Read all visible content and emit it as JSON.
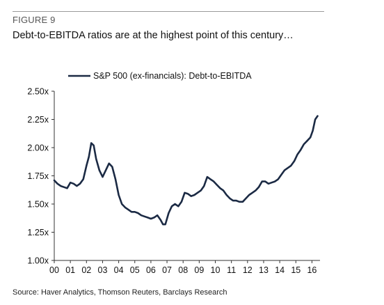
{
  "figure_label": "FIGURE 9",
  "headline": "Debt-to-EBITDA ratios are at the highest point of this century…",
  "source": "Source: Haver Analytics, Thomson Reuters, Barclays Research",
  "colors": {
    "series": "#1b2a44",
    "axis": "#333333",
    "rule": "#9a9a9a"
  },
  "chart_data": {
    "type": "line",
    "title": "",
    "xlabel": "",
    "ylabel": "",
    "legend_placement": "top",
    "grid": false,
    "xlim": [
      2000,
      2016.5
    ],
    "ylim": [
      1.0,
      2.5
    ],
    "x_ticks": [
      2000,
      2001,
      2002,
      2003,
      2004,
      2005,
      2006,
      2007,
      2008,
      2009,
      2010,
      2011,
      2012,
      2013,
      2014,
      2015,
      2016
    ],
    "x_tick_labels": [
      "00",
      "01",
      "02",
      "03",
      "04",
      "05",
      "06",
      "07",
      "08",
      "09",
      "10",
      "11",
      "12",
      "13",
      "14",
      "15",
      "16"
    ],
    "y_ticks": [
      1.0,
      1.25,
      1.5,
      1.75,
      2.0,
      2.25,
      2.5
    ],
    "y_tick_labels": [
      "1.00x",
      "1.25x",
      "1.50x",
      "1.75x",
      "2.00x",
      "2.25x",
      "2.50x"
    ],
    "series": [
      {
        "name": "S&P 500 (ex-financials): Debt-to-EBITDA",
        "x": [
          2000.0,
          2000.2,
          2000.4,
          2000.6,
          2000.8,
          2001.0,
          2001.2,
          2001.4,
          2001.6,
          2001.8,
          2002.0,
          2002.15,
          2002.3,
          2002.45,
          2002.6,
          2002.8,
          2003.0,
          2003.2,
          2003.4,
          2003.6,
          2003.8,
          2004.0,
          2004.2,
          2004.4,
          2004.6,
          2004.8,
          2005.0,
          2005.2,
          2005.4,
          2005.6,
          2005.8,
          2006.0,
          2006.2,
          2006.4,
          2006.6,
          2006.75,
          2006.9,
          2007.1,
          2007.3,
          2007.5,
          2007.7,
          2007.9,
          2008.1,
          2008.3,
          2008.5,
          2008.7,
          2008.9,
          2009.1,
          2009.3,
          2009.5,
          2009.7,
          2009.9,
          2010.1,
          2010.3,
          2010.5,
          2010.7,
          2010.9,
          2011.1,
          2011.3,
          2011.5,
          2011.7,
          2011.9,
          2012.1,
          2012.3,
          2012.5,
          2012.7,
          2012.9,
          2013.1,
          2013.3,
          2013.5,
          2013.7,
          2013.9,
          2014.1,
          2014.3,
          2014.5,
          2014.7,
          2014.9,
          2015.1,
          2015.3,
          2015.5,
          2015.7,
          2015.9,
          2016.05,
          2016.2,
          2016.35
        ],
        "values": [
          1.71,
          1.68,
          1.66,
          1.65,
          1.64,
          1.69,
          1.68,
          1.66,
          1.68,
          1.72,
          1.84,
          1.92,
          2.04,
          2.02,
          1.9,
          1.8,
          1.74,
          1.8,
          1.86,
          1.83,
          1.72,
          1.58,
          1.5,
          1.47,
          1.45,
          1.43,
          1.43,
          1.42,
          1.4,
          1.39,
          1.38,
          1.37,
          1.38,
          1.4,
          1.36,
          1.32,
          1.32,
          1.42,
          1.48,
          1.5,
          1.48,
          1.52,
          1.6,
          1.59,
          1.57,
          1.58,
          1.6,
          1.62,
          1.66,
          1.74,
          1.72,
          1.7,
          1.67,
          1.64,
          1.62,
          1.58,
          1.55,
          1.53,
          1.53,
          1.52,
          1.52,
          1.55,
          1.58,
          1.6,
          1.62,
          1.65,
          1.7,
          1.7,
          1.68,
          1.69,
          1.7,
          1.72,
          1.76,
          1.8,
          1.82,
          1.84,
          1.88,
          1.94,
          1.98,
          2.03,
          2.06,
          2.09,
          2.15,
          2.25,
          2.28
        ]
      }
    ]
  }
}
